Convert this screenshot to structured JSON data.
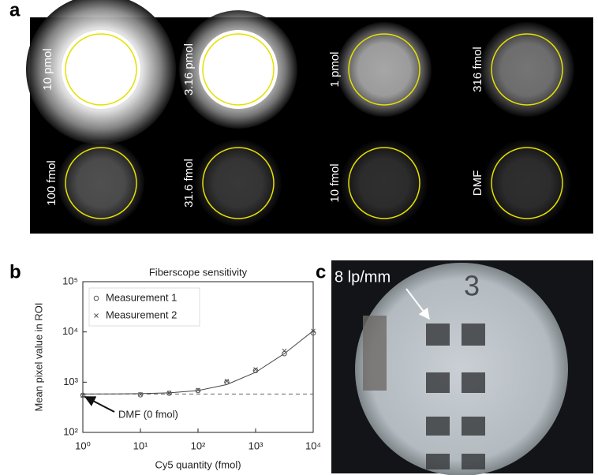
{
  "panel_labels": [
    "a",
    "b",
    "c"
  ],
  "panel_a": {
    "labels": [
      "10 pmol",
      "3.16 pmol",
      "1 pmol",
      "316 fmol",
      "100 fmol",
      "31.6 fmol",
      "10 fmol",
      "DMF"
    ]
  },
  "chart_data": {
    "type": "scatter",
    "title": "Fiberscope sensitivity",
    "x_label": "Cy5 quantity (fmol)",
    "y_label": "Mean pixel value in ROI",
    "x": [
      1,
      10,
      31.6,
      100,
      316,
      1000,
      3160,
      10000
    ],
    "series": [
      {
        "name": "Measurement 1",
        "color": "#555555",
        "marker": "circle",
        "values": [
          550,
          560,
          600,
          680,
          1000,
          1700,
          3700,
          9500
        ]
      },
      {
        "name": "Measurement 2",
        "color": "#555555",
        "marker": "x",
        "values": [
          540,
          570,
          610,
          700,
          1050,
          1800,
          4200,
          10500
        ]
      }
    ],
    "fit": {
      "x": [
        1,
        3.16,
        10,
        31.6,
        100,
        316,
        1000,
        3160,
        10000
      ],
      "values": [
        581,
        583,
        590,
        612,
        680,
        896,
        1570,
        3710,
        10500
      ]
    },
    "baseline": 580,
    "annotation": "DMF (0 fmol)",
    "log_x": true,
    "log_y": true,
    "xlim": [
      1,
      10000
    ],
    "ylim": [
      100,
      100000
    ],
    "xticks": [
      {
        "value": 1,
        "label": "10⁰"
      },
      {
        "value": 10,
        "label": "10¹"
      },
      {
        "value": 100,
        "label": "10²"
      },
      {
        "value": 1000,
        "label": "10³"
      },
      {
        "value": 10000,
        "label": "10⁴"
      }
    ],
    "yticks": [
      {
        "value": 100,
        "label": "10²"
      },
      {
        "value": 1000,
        "label": "10³"
      },
      {
        "value": 10000,
        "label": "10⁴"
      },
      {
        "value": 100000,
        "label": "10⁵"
      }
    ],
    "legend": "upper left"
  },
  "panel_c": {
    "label": "8 lp/mm",
    "digit": "3"
  }
}
